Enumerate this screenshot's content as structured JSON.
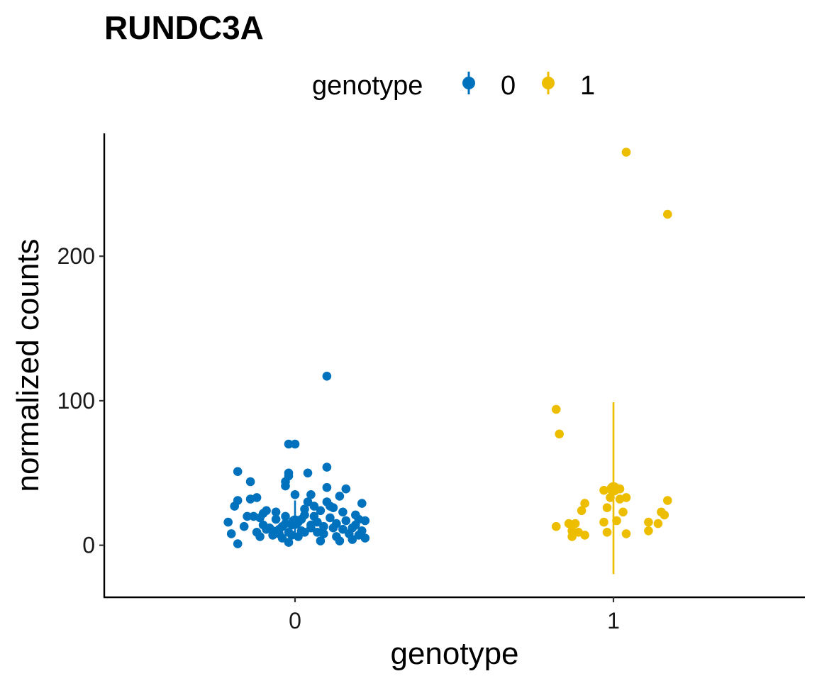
{
  "chart_data": {
    "type": "scatter",
    "title": "RUNDC3A",
    "xlabel": "genotype",
    "ylabel": "normalized counts",
    "categories": [
      "0",
      "1"
    ],
    "ylim": [
      -36,
      285
    ],
    "y_ticks": [
      0,
      100,
      200
    ],
    "grid": false,
    "legend": {
      "title": "genotype",
      "position": "top",
      "entries": [
        "0",
        "1"
      ]
    },
    "colors": {
      "0": "#0072BD",
      "1": "#EDBD00"
    },
    "series": [
      {
        "name": "0",
        "color": "#0072BD",
        "summary": {
          "mean": 16,
          "ymin": 7,
          "ymax": 31
        },
        "points": [
          {
            "x": -0.18,
            "y": 51
          },
          {
            "x": -0.18,
            "y": 1
          },
          {
            "x": -0.2,
            "y": 8
          },
          {
            "x": -0.21,
            "y": 16
          },
          {
            "x": -0.19,
            "y": 27
          },
          {
            "x": -0.18,
            "y": 31
          },
          {
            "x": -0.16,
            "y": 13
          },
          {
            "x": -0.15,
            "y": 20
          },
          {
            "x": -0.14,
            "y": 44
          },
          {
            "x": -0.14,
            "y": 32
          },
          {
            "x": -0.13,
            "y": 20
          },
          {
            "x": -0.12,
            "y": 33
          },
          {
            "x": -0.12,
            "y": 9
          },
          {
            "x": -0.11,
            "y": 6
          },
          {
            "x": -0.1,
            "y": 14
          },
          {
            "x": -0.1,
            "y": 22
          },
          {
            "x": -0.09,
            "y": 24
          },
          {
            "x": -0.08,
            "y": 12
          },
          {
            "x": -0.07,
            "y": 7
          },
          {
            "x": -0.06,
            "y": 18
          },
          {
            "x": -0.06,
            "y": 23
          },
          {
            "x": -0.05,
            "y": 11
          },
          {
            "x": -0.04,
            "y": 5
          },
          {
            "x": -0.03,
            "y": 15
          },
          {
            "x": -0.03,
            "y": 41
          },
          {
            "x": -0.02,
            "y": 9
          },
          {
            "x": -0.01,
            "y": 7
          },
          {
            "x": -0.01,
            "y": 14
          },
          {
            "x": -0.03,
            "y": 44
          },
          {
            "x": -0.02,
            "y": 50
          },
          {
            "x": -0.03,
            "y": 20
          },
          {
            "x": -0.02,
            "y": 48
          },
          {
            "x": -0.02,
            "y": 2
          },
          {
            "x": -0.02,
            "y": 70
          },
          {
            "x": 0.0,
            "y": 70
          },
          {
            "x": 0.0,
            "y": 35
          },
          {
            "x": 0.01,
            "y": 6
          },
          {
            "x": 0.02,
            "y": 10
          },
          {
            "x": 0.02,
            "y": 18
          },
          {
            "x": 0.03,
            "y": 25
          },
          {
            "x": 0.03,
            "y": 9
          },
          {
            "x": 0.04,
            "y": 50
          },
          {
            "x": 0.04,
            "y": 30
          },
          {
            "x": 0.05,
            "y": 35
          },
          {
            "x": 0.05,
            "y": 14
          },
          {
            "x": 0.06,
            "y": 20
          },
          {
            "x": 0.06,
            "y": 27
          },
          {
            "x": 0.05,
            "y": 12
          },
          {
            "x": 0.07,
            "y": 16
          },
          {
            "x": 0.08,
            "y": 24
          },
          {
            "x": 0.08,
            "y": 3
          },
          {
            "x": 0.09,
            "y": 8
          },
          {
            "x": 0.09,
            "y": 13
          },
          {
            "x": 0.1,
            "y": 54
          },
          {
            "x": 0.1,
            "y": 40
          },
          {
            "x": 0.1,
            "y": 30
          },
          {
            "x": 0.11,
            "y": 19
          },
          {
            "x": 0.11,
            "y": 27
          },
          {
            "x": 0.12,
            "y": 12
          },
          {
            "x": 0.12,
            "y": 26
          },
          {
            "x": 0.13,
            "y": 6
          },
          {
            "x": 0.13,
            "y": 15
          },
          {
            "x": 0.14,
            "y": 3
          },
          {
            "x": 0.14,
            "y": 34
          },
          {
            "x": 0.15,
            "y": 23
          },
          {
            "x": 0.15,
            "y": 11
          },
          {
            "x": 0.16,
            "y": 39
          },
          {
            "x": 0.16,
            "y": 17
          },
          {
            "x": 0.17,
            "y": 8
          },
          {
            "x": 0.18,
            "y": 4
          },
          {
            "x": 0.18,
            "y": 12
          },
          {
            "x": 0.19,
            "y": 21
          },
          {
            "x": 0.19,
            "y": 14
          },
          {
            "x": 0.2,
            "y": 7
          },
          {
            "x": 0.2,
            "y": 18
          },
          {
            "x": 0.21,
            "y": 29
          },
          {
            "x": 0.21,
            "y": 10
          },
          {
            "x": 0.22,
            "y": 5
          },
          {
            "x": 0.22,
            "y": 17
          },
          {
            "x": 0.1,
            "y": 117
          },
          {
            "x": -0.07,
            "y": 10
          },
          {
            "x": -0.04,
            "y": 13
          },
          {
            "x": 0.01,
            "y": 16
          },
          {
            "x": 0.07,
            "y": 9
          },
          {
            "x": -0.09,
            "y": 11
          },
          {
            "x": -0.11,
            "y": 19
          },
          {
            "x": 0.03,
            "y": 21
          },
          {
            "x": -0.05,
            "y": 8
          }
        ]
      },
      {
        "name": "1",
        "color": "#EDBD00",
        "summary": {
          "mean": 39,
          "ymin": -20,
          "ymax": 99
        },
        "points": [
          {
            "x": -0.18,
            "y": 94
          },
          {
            "x": -0.17,
            "y": 77
          },
          {
            "x": 0.04,
            "y": 272
          },
          {
            "x": 0.17,
            "y": 229
          },
          {
            "x": -0.18,
            "y": 13
          },
          {
            "x": -0.14,
            "y": 15
          },
          {
            "x": -0.13,
            "y": 10
          },
          {
            "x": -0.13,
            "y": 6
          },
          {
            "x": -0.12,
            "y": 15
          },
          {
            "x": -0.11,
            "y": 9
          },
          {
            "x": -0.1,
            "y": 24
          },
          {
            "x": -0.09,
            "y": 29
          },
          {
            "x": -0.09,
            "y": 7
          },
          {
            "x": -0.03,
            "y": 38
          },
          {
            "x": -0.03,
            "y": 16
          },
          {
            "x": -0.02,
            "y": 26
          },
          {
            "x": -0.02,
            "y": 9
          },
          {
            "x": -0.01,
            "y": 33
          },
          {
            "x": 0.01,
            "y": 17
          },
          {
            "x": 0.02,
            "y": 39
          },
          {
            "x": 0.02,
            "y": 32
          },
          {
            "x": 0.03,
            "y": 23
          },
          {
            "x": 0.04,
            "y": 33
          },
          {
            "x": 0.04,
            "y": 8
          },
          {
            "x": 0.11,
            "y": 10
          },
          {
            "x": 0.11,
            "y": 16
          },
          {
            "x": 0.14,
            "y": 15
          },
          {
            "x": 0.15,
            "y": 23
          },
          {
            "x": 0.16,
            "y": 21
          },
          {
            "x": 0.17,
            "y": 31
          }
        ]
      }
    ]
  }
}
